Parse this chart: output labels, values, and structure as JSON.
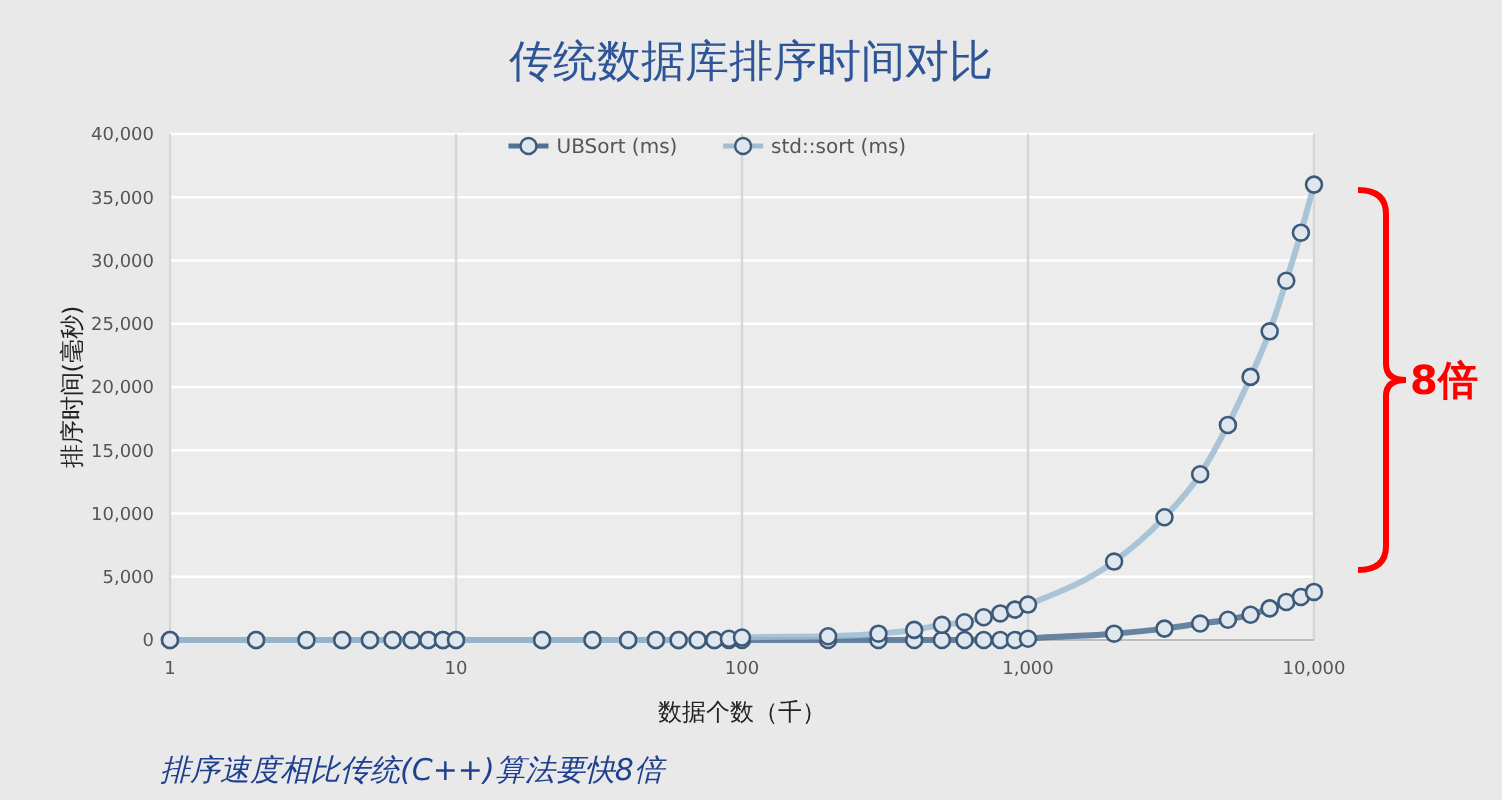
{
  "chart_data": {
    "type": "line",
    "title": "传统数据库排序时间对比",
    "xlabel": "数据个数（千）",
    "ylabel": "排序时间(毫秒)",
    "x": [
      1,
      2,
      3,
      4,
      5,
      6,
      7,
      8,
      9,
      10,
      20,
      30,
      40,
      50,
      60,
      70,
      80,
      90,
      100,
      200,
      300,
      400,
      500,
      600,
      700,
      800,
      900,
      1000,
      2000,
      3000,
      4000,
      5000,
      6000,
      7000,
      8000,
      9000,
      10000
    ],
    "series": [
      {
        "name": "UBSort (ms)",
        "color": "#4f7193",
        "values": [
          0,
          0,
          0,
          0,
          0,
          0,
          0,
          0,
          0,
          0,
          0,
          0,
          0,
          0,
          0,
          0,
          0,
          0,
          0,
          0,
          0,
          0,
          0,
          0,
          0,
          0,
          0,
          100,
          500,
          900,
          1300,
          1600,
          2000,
          2500,
          3000,
          3400,
          3800
        ]
      },
      {
        "name": "std::sort (ms)",
        "color": "#9fbdd4",
        "values": [
          0,
          0,
          0,
          0,
          0,
          0,
          0,
          0,
          0,
          0,
          0,
          0,
          0,
          0,
          0,
          0,
          0,
          100,
          200,
          300,
          500,
          800,
          1200,
          1400,
          1800,
          2100,
          2400,
          2800,
          6200,
          9700,
          13100,
          17000,
          20800,
          24400,
          28400,
          32200,
          36000
        ]
      }
    ],
    "log": "x",
    "xlim": [
      1,
      10000
    ],
    "xticks": [
      1,
      10,
      100,
      {
        "value": 1000,
        "label": "1,000"
      },
      {
        "value": 10000,
        "label": "10,000"
      }
    ],
    "ylim": [
      0,
      40000
    ],
    "yticks": [
      {
        "value": 0,
        "label": "0"
      },
      {
        "value": 5000,
        "label": "5,000"
      },
      {
        "value": 10000,
        "label": "10,000"
      },
      {
        "value": 15000,
        "label": "15,000"
      },
      {
        "value": 20000,
        "label": "20,000"
      },
      {
        "value": 25000,
        "label": "25,000"
      },
      {
        "value": 30000,
        "label": "30,000"
      },
      {
        "value": 35000,
        "label": "35,000"
      },
      {
        "value": 40000,
        "label": "40,000"
      }
    ],
    "grid": true,
    "legend": "top",
    "marker": "circle",
    "annotations": [
      "8倍",
      "排序速度相比传统(C++)算法要快8倍"
    ]
  }
}
